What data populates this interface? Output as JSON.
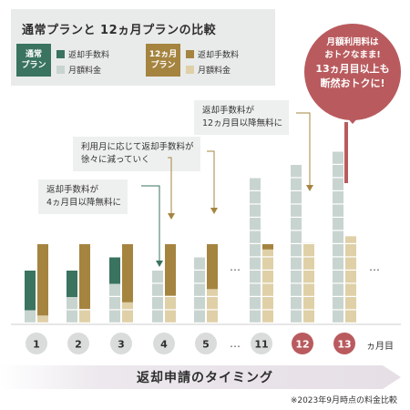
{
  "title": "通常プランと 12ヵ月プランの比較",
  "legend": {
    "plans": [
      {
        "label": "通常\nプラン",
        "color": "#3a735f"
      },
      {
        "label": "12ヵ月\nプラン",
        "color": "#a58440"
      }
    ],
    "items": [
      {
        "label": "返却手数料",
        "color": "#3a735f"
      },
      {
        "label": "月額料金",
        "color": "#c8d4d0"
      },
      {
        "label": "返却手数料",
        "color": "#a58440"
      },
      {
        "label": "月額料金",
        "color": "#dfd0a8"
      }
    ]
  },
  "callouts": [
    {
      "text": "返却手数料が\n4ヵ月目以降無料に"
    },
    {
      "text": "利用月に応じて返却手数料が\n徐々に減っていく"
    },
    {
      "text": "返却手数料が\n12ヵ月目以降無料に"
    }
  ],
  "bubble": {
    "line1": "月額利用料は",
    "line2": "おトクなまま!",
    "line3": "13ヵ月目以上も",
    "line4": "断然おトクに!"
  },
  "footer": "返却申請のタイミング",
  "note": "※2023年9月時点の料金比較",
  "unit_label": "ヵ月目",
  "ellipsis": "…",
  "chart_data": {
    "type": "bar",
    "categories": [
      "1",
      "2",
      "3",
      "4",
      "5",
      "11",
      "12",
      "13"
    ],
    "highlight_categories": [
      "12",
      "13"
    ],
    "series": [
      {
        "name": "通常プラン 月額料金",
        "plan": "通常プラン",
        "values": [
          1,
          2,
          3,
          4,
          5,
          11,
          12,
          13
        ]
      },
      {
        "name": "通常プラン 返却手数料",
        "plan": "通常プラン",
        "values": [
          3,
          2,
          2,
          0,
          0,
          0,
          0,
          0
        ]
      },
      {
        "name": "12ヵ月プラン 月額料金",
        "plan": "12ヵ月プラン",
        "values": [
          0.6,
          1.1,
          1.6,
          2.1,
          2.6,
          5.6,
          6.1,
          6.6
        ]
      },
      {
        "name": "12ヵ月プラン 返却手数料",
        "plan": "12ヵ月プラン",
        "values": [
          5.4,
          4.9,
          4.4,
          3.9,
          3.4,
          0.4,
          0,
          0
        ]
      }
    ],
    "colors": {
      "normal_fee": "#3a735f",
      "normal_monthly": "#c8d4d0",
      "plan12_fee": "#a58440",
      "plan12_monthly": "#dfd0a8",
      "accent": "#b95b5e",
      "circle": "#d9dcdb"
    }
  }
}
